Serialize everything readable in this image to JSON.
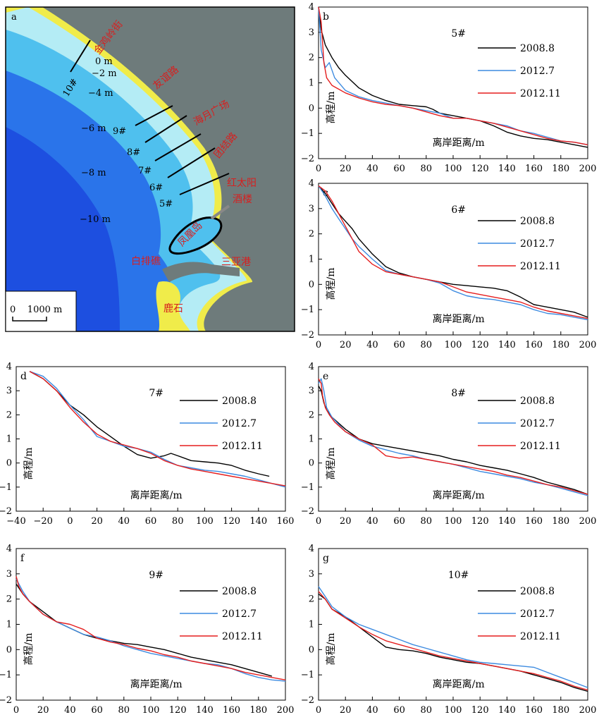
{
  "map": {
    "letter": "a",
    "depth_labels": [
      "0 m",
      "−2 m",
      "−4 m",
      "−6 m",
      "−8 m",
      "−10 m"
    ],
    "transects": [
      "5#",
      "6#",
      "7#",
      "8#",
      "9#",
      "10#"
    ],
    "places": [
      "金鸡岭街",
      "友谊路",
      "海月广场",
      "团结路",
      "红太阳",
      "酒楼",
      "凤凰岛",
      "白排礁",
      "三亚港",
      "鹿石"
    ],
    "scale_label": "0    1000 m",
    "colors": {
      "land": "#6e7b7b",
      "sand": "#f0ec4a",
      "shallow": "#b4ecf5",
      "mid": "#4fc0ee",
      "deep": "#2a74ea",
      "deeper": "#1d4fe0"
    }
  },
  "legend": {
    "series": [
      "2008.8",
      "2012.7",
      "2012.11"
    ],
    "colors": [
      "#000000",
      "#3d8be0",
      "#e51e1e"
    ]
  },
  "chart_data": [
    {
      "id": "b",
      "letter": "b",
      "type": "line",
      "title": "5#",
      "xlabel": "离岸距离/m",
      "ylabel": "高程/m",
      "xlim": [
        0,
        200
      ],
      "ylim": [
        -2,
        4
      ],
      "xticks": [
        0,
        20,
        40,
        60,
        80,
        100,
        120,
        140,
        160,
        180,
        200
      ],
      "yticks": [
        -2,
        -1,
        0,
        1,
        2,
        3,
        4
      ],
      "series": [
        {
          "name": "2008.8",
          "x": [
            0,
            2,
            5,
            10,
            15,
            20,
            30,
            40,
            50,
            60,
            70,
            80,
            85,
            90,
            100,
            110,
            120,
            130,
            140,
            150,
            160,
            170,
            180,
            190,
            200
          ],
          "y": [
            4,
            3.1,
            2.5,
            2.0,
            1.6,
            1.3,
            0.8,
            0.5,
            0.3,
            0.15,
            0.1,
            0.05,
            -0.05,
            -0.2,
            -0.3,
            -0.4,
            -0.5,
            -0.7,
            -0.95,
            -1.1,
            -1.2,
            -1.25,
            -1.35,
            -1.45,
            -1.55
          ]
        },
        {
          "name": "2012.7",
          "x": [
            0,
            2,
            5,
            8,
            12,
            20,
            30,
            40,
            50,
            60,
            70,
            80,
            90,
            100,
            110,
            120,
            130,
            140,
            150,
            160,
            170,
            180,
            190,
            200
          ],
          "y": [
            4,
            2.3,
            1.6,
            1.8,
            1.2,
            0.7,
            0.45,
            0.3,
            0.2,
            0.1,
            0.0,
            -0.1,
            -0.2,
            -0.4,
            -0.4,
            -0.5,
            -0.6,
            -0.7,
            -0.9,
            -1.0,
            -1.15,
            -1.3,
            -1.35,
            -1.45
          ]
        },
        {
          "name": "2012.11",
          "x": [
            0,
            2,
            4,
            6,
            10,
            20,
            30,
            40,
            50,
            60,
            70,
            80,
            90,
            100,
            110,
            120,
            130,
            140,
            150,
            160,
            170,
            180,
            190,
            200
          ],
          "y": [
            4,
            3.4,
            1.8,
            1.2,
            0.9,
            0.6,
            0.4,
            0.25,
            0.15,
            0.1,
            0.0,
            -0.15,
            -0.3,
            -0.4,
            -0.4,
            -0.5,
            -0.6,
            -0.75,
            -0.9,
            -1.05,
            -1.2,
            -1.3,
            -1.35,
            -1.45
          ]
        }
      ]
    },
    {
      "id": "c",
      "letter": "c",
      "type": "line",
      "title": "6#",
      "xlabel": "离岸距离/m",
      "ylabel": "高程/m",
      "xlim": [
        0,
        200
      ],
      "ylim": [
        -2,
        4
      ],
      "xticks": [
        0,
        20,
        40,
        60,
        80,
        100,
        120,
        140,
        160,
        180,
        200
      ],
      "yticks": [
        -2,
        -1,
        0,
        1,
        2,
        3,
        4
      ],
      "series": [
        {
          "name": "2008.8",
          "x": [
            0,
            5,
            10,
            15,
            20,
            25,
            30,
            40,
            50,
            60,
            70,
            80,
            90,
            100,
            110,
            120,
            130,
            140,
            150,
            160,
            170,
            180,
            190,
            200
          ],
          "y": [
            3.9,
            3.6,
            3.2,
            2.8,
            2.5,
            2.2,
            1.8,
            1.2,
            0.7,
            0.45,
            0.3,
            0.2,
            0.1,
            0.0,
            -0.05,
            -0.1,
            -0.15,
            -0.25,
            -0.5,
            -0.8,
            -0.9,
            -1.0,
            -1.1,
            -1.3
          ]
        },
        {
          "name": "2012.7",
          "x": [
            0,
            5,
            10,
            15,
            20,
            25,
            30,
            40,
            50,
            60,
            70,
            80,
            90,
            100,
            110,
            120,
            130,
            140,
            150,
            160,
            170,
            180,
            190,
            200
          ],
          "y": [
            3.9,
            3.5,
            3.0,
            2.6,
            2.2,
            1.8,
            1.5,
            1.0,
            0.55,
            0.4,
            0.3,
            0.2,
            0.05,
            -0.25,
            -0.45,
            -0.55,
            -0.6,
            -0.7,
            -0.8,
            -1.0,
            -1.15,
            -1.2,
            -1.3,
            -1.4
          ]
        },
        {
          "name": "2012.11",
          "x": [
            0,
            5,
            10,
            15,
            20,
            25,
            30,
            40,
            50,
            60,
            70,
            80,
            90,
            100,
            110,
            120,
            130,
            140,
            150,
            160,
            170,
            180,
            190,
            200
          ],
          "y": [
            3.9,
            3.7,
            3.3,
            2.8,
            2.3,
            1.8,
            1.3,
            0.8,
            0.5,
            0.4,
            0.3,
            0.2,
            0.1,
            -0.1,
            -0.3,
            -0.4,
            -0.5,
            -0.6,
            -0.7,
            -0.9,
            -1.05,
            -1.15,
            -1.25,
            -1.35
          ]
        }
      ]
    },
    {
      "id": "d",
      "letter": "d",
      "type": "line",
      "title": "7#",
      "xlabel": "离岸距离/m",
      "ylabel": "高程/m",
      "xlim": [
        -40,
        160
      ],
      "ylim": [
        -2,
        4
      ],
      "xticks": [
        -40,
        -20,
        0,
        20,
        40,
        60,
        80,
        100,
        120,
        140,
        160
      ],
      "yticks": [
        -2,
        -1,
        0,
        1,
        2,
        3,
        4
      ],
      "series": [
        {
          "name": "2008.8",
          "x": [
            -30,
            -20,
            -10,
            0,
            10,
            20,
            30,
            40,
            50,
            60,
            70,
            75,
            80,
            90,
            100,
            110,
            120,
            130,
            140,
            148
          ],
          "y": [
            3.8,
            3.5,
            3.0,
            2.4,
            2.0,
            1.5,
            1.1,
            0.7,
            0.35,
            0.2,
            0.3,
            0.4,
            0.3,
            0.1,
            0.05,
            0.0,
            -0.1,
            -0.3,
            -0.45,
            -0.55
          ]
        },
        {
          "name": "2012.7",
          "x": [
            -30,
            -20,
            -10,
            0,
            10,
            20,
            30,
            40,
            50,
            60,
            70,
            80,
            90,
            100,
            110,
            120,
            130,
            140,
            150,
            160
          ],
          "y": [
            3.8,
            3.6,
            3.1,
            2.4,
            1.8,
            1.1,
            0.9,
            0.7,
            0.6,
            0.45,
            0.15,
            -0.1,
            -0.2,
            -0.3,
            -0.35,
            -0.45,
            -0.55,
            -0.7,
            -0.85,
            -1.0
          ]
        },
        {
          "name": "2012.11",
          "x": [
            -30,
            -20,
            -10,
            0,
            10,
            20,
            30,
            40,
            50,
            60,
            70,
            80,
            90,
            100,
            110,
            120,
            130,
            140,
            150,
            160
          ],
          "y": [
            3.8,
            3.5,
            3.0,
            2.3,
            1.7,
            1.2,
            0.9,
            0.75,
            0.6,
            0.4,
            0.1,
            -0.1,
            -0.25,
            -0.35,
            -0.45,
            -0.55,
            -0.65,
            -0.75,
            -0.85,
            -0.95
          ]
        }
      ]
    },
    {
      "id": "e",
      "letter": "e",
      "type": "line",
      "title": "8#",
      "xlabel": "离岸距离/m",
      "ylabel": "高程/m",
      "xlim": [
        0,
        200
      ],
      "ylim": [
        -2,
        4
      ],
      "xticks": [
        0,
        20,
        40,
        60,
        80,
        100,
        120,
        140,
        160,
        180,
        200
      ],
      "yticks": [
        -2,
        -1,
        0,
        1,
        2,
        3,
        4
      ],
      "series": [
        {
          "name": "2008.8",
          "x": [
            0,
            2,
            4,
            6,
            10,
            20,
            30,
            40,
            50,
            60,
            70,
            80,
            90,
            100,
            110,
            120,
            130,
            140,
            150,
            160,
            170,
            180,
            190,
            200
          ],
          "y": [
            3.2,
            3.0,
            2.5,
            2.2,
            1.9,
            1.4,
            1.0,
            0.8,
            0.7,
            0.6,
            0.5,
            0.4,
            0.3,
            0.15,
            0.05,
            -0.1,
            -0.2,
            -0.3,
            -0.45,
            -0.6,
            -0.8,
            -0.95,
            -1.1,
            -1.3
          ]
        },
        {
          "name": "2012.7",
          "x": [
            0,
            2,
            4,
            6,
            10,
            20,
            30,
            40,
            50,
            60,
            70,
            80,
            90,
            100,
            110,
            120,
            130,
            140,
            150,
            160,
            170,
            180,
            190,
            200
          ],
          "y": [
            3.3,
            3.5,
            3.0,
            2.3,
            1.9,
            1.3,
            0.95,
            0.7,
            0.55,
            0.4,
            0.3,
            0.15,
            0.05,
            -0.05,
            -0.2,
            -0.35,
            -0.45,
            -0.55,
            -0.65,
            -0.8,
            -0.9,
            -1.05,
            -1.2,
            -1.35
          ]
        },
        {
          "name": "2012.11",
          "x": [
            0,
            2,
            3,
            5,
            8,
            12,
            20,
            30,
            40,
            50,
            60,
            70,
            80,
            90,
            100,
            110,
            120,
            130,
            140,
            150,
            160,
            170,
            180,
            190,
            200
          ],
          "y": [
            3.5,
            3.3,
            2.8,
            2.3,
            2.0,
            1.7,
            1.3,
            1.0,
            0.75,
            0.3,
            0.2,
            0.25,
            0.15,
            0.05,
            -0.05,
            -0.15,
            -0.25,
            -0.35,
            -0.5,
            -0.6,
            -0.75,
            -0.9,
            -1.0,
            -1.15,
            -1.3
          ]
        }
      ]
    },
    {
      "id": "f",
      "letter": "f",
      "type": "line",
      "title": "9#",
      "xlabel": "离岸距离/m",
      "ylabel": "高程/m",
      "xlim": [
        0,
        200
      ],
      "ylim": [
        -2,
        4
      ],
      "xticks": [
        0,
        20,
        40,
        60,
        80,
        100,
        120,
        140,
        160,
        180,
        200
      ],
      "yticks": [
        -2,
        -1,
        0,
        1,
        2,
        3,
        4
      ],
      "series": [
        {
          "name": "2008.8",
          "x": [
            0,
            5,
            10,
            20,
            30,
            40,
            50,
            60,
            70,
            80,
            90,
            100,
            110,
            120,
            130,
            140,
            150,
            160,
            170,
            180,
            190
          ],
          "y": [
            2.6,
            2.2,
            1.9,
            1.5,
            1.1,
            0.85,
            0.6,
            0.45,
            0.35,
            0.25,
            0.2,
            0.1,
            0.0,
            -0.15,
            -0.3,
            -0.4,
            -0.5,
            -0.6,
            -0.75,
            -0.9,
            -1.05
          ]
        },
        {
          "name": "2012.7",
          "x": [
            0,
            5,
            10,
            20,
            30,
            40,
            50,
            60,
            70,
            80,
            90,
            100,
            110,
            120,
            130,
            140,
            150,
            160,
            170,
            180,
            190,
            200
          ],
          "y": [
            2.8,
            2.3,
            1.9,
            1.4,
            1.1,
            0.85,
            0.6,
            0.5,
            0.35,
            0.15,
            0.0,
            -0.15,
            -0.25,
            -0.35,
            -0.45,
            -0.55,
            -0.6,
            -0.75,
            -0.95,
            -1.1,
            -1.2,
            -1.25
          ]
        },
        {
          "name": "2012.11",
          "x": [
            0,
            2,
            5,
            10,
            20,
            30,
            40,
            50,
            60,
            70,
            80,
            90,
            100,
            110,
            120,
            130,
            140,
            150,
            160,
            170,
            180,
            190,
            200
          ],
          "y": [
            2.9,
            2.5,
            2.2,
            1.9,
            1.4,
            1.1,
            1.0,
            0.8,
            0.45,
            0.3,
            0.2,
            0.05,
            -0.05,
            -0.2,
            -0.3,
            -0.45,
            -0.55,
            -0.65,
            -0.75,
            -0.9,
            -1.0,
            -1.1,
            -1.2
          ]
        }
      ]
    },
    {
      "id": "g",
      "letter": "g",
      "type": "line",
      "title": "10#",
      "xlabel": "离岸距离/m",
      "ylabel": "高程/m",
      "xlim": [
        0,
        200
      ],
      "ylim": [
        -2,
        4
      ],
      "xticks": [
        0,
        20,
        40,
        60,
        80,
        100,
        120,
        140,
        160,
        180,
        200
      ],
      "yticks": [
        -2,
        -1,
        0,
        1,
        2,
        3,
        4
      ],
      "series": [
        {
          "name": "2008.8",
          "x": [
            0,
            5,
            10,
            20,
            30,
            40,
            50,
            60,
            70,
            80,
            90,
            100,
            110,
            120,
            130,
            140,
            150,
            160,
            170,
            180,
            190,
            200
          ],
          "y": [
            2.2,
            2.0,
            1.6,
            1.3,
            0.9,
            0.5,
            0.1,
            0.0,
            -0.05,
            -0.15,
            -0.3,
            -0.4,
            -0.5,
            -0.55,
            -0.65,
            -0.75,
            -0.85,
            -1.0,
            -1.15,
            -1.3,
            -1.5,
            -1.65
          ]
        },
        {
          "name": "2012.7",
          "x": [
            0,
            5,
            10,
            20,
            30,
            40,
            50,
            60,
            70,
            80,
            90,
            100,
            110,
            120,
            130,
            140,
            150,
            160,
            170,
            180,
            190,
            200
          ],
          "y": [
            2.5,
            2.1,
            1.7,
            1.3,
            1.0,
            0.8,
            0.6,
            0.4,
            0.2,
            0.05,
            -0.1,
            -0.25,
            -0.4,
            -0.5,
            -0.55,
            -0.6,
            -0.65,
            -0.7,
            -0.9,
            -1.1,
            -1.3,
            -1.5
          ]
        },
        {
          "name": "2012.11",
          "x": [
            0,
            5,
            10,
            20,
            30,
            40,
            50,
            60,
            70,
            80,
            90,
            100,
            110,
            120,
            130,
            140,
            150,
            160,
            170,
            180,
            190,
            200
          ],
          "y": [
            2.3,
            2.0,
            1.6,
            1.25,
            0.9,
            0.6,
            0.35,
            0.2,
            0.05,
            -0.1,
            -0.25,
            -0.35,
            -0.45,
            -0.55,
            -0.65,
            -0.75,
            -0.85,
            -0.95,
            -1.1,
            -1.25,
            -1.45,
            -1.6
          ]
        }
      ]
    }
  ]
}
